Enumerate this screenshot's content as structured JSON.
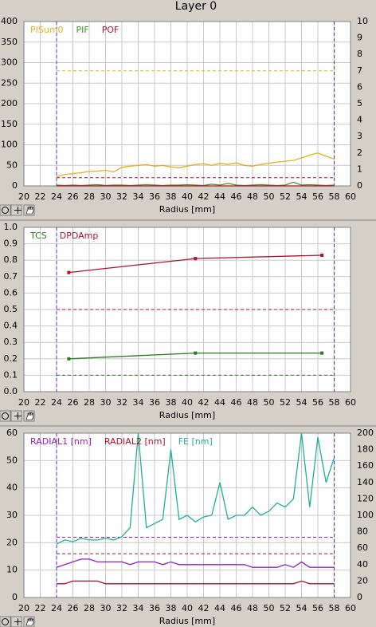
{
  "title": "Layer 0",
  "chart_data": [
    {
      "type": "line",
      "xlabel": "Radius [mm]",
      "xlim": [
        20,
        60
      ],
      "xticks": [
        20,
        22,
        24,
        26,
        28,
        30,
        32,
        34,
        36,
        38,
        40,
        42,
        44,
        46,
        48,
        50,
        52,
        54,
        56,
        58,
        60
      ],
      "ylim": [
        0,
        400
      ],
      "yticks": [
        0,
        50,
        100,
        150,
        200,
        250,
        300,
        350,
        400
      ],
      "y2lim": [
        0,
        10
      ],
      "y2ticks": [
        0,
        1,
        2,
        3,
        4,
        5,
        6,
        7,
        8,
        9,
        10
      ],
      "x": [
        24,
        25,
        26,
        27,
        28,
        29,
        30,
        31,
        32,
        33,
        34,
        35,
        36,
        37,
        38,
        39,
        40,
        41,
        42,
        43,
        44,
        45,
        46,
        47,
        48,
        49,
        50,
        51,
        52,
        53,
        54,
        55,
        56,
        57,
        58
      ],
      "series": [
        {
          "name": "PISum0",
          "color": "#e8b020",
          "values": [
            22,
            28,
            30,
            32,
            35,
            36,
            38,
            34,
            45,
            48,
            50,
            52,
            48,
            50,
            46,
            44,
            48,
            52,
            54,
            50,
            55,
            52,
            56,
            50,
            48,
            52,
            55,
            58,
            60,
            62,
            68,
            75,
            80,
            72,
            65
          ]
        },
        {
          "name": "PIF",
          "color": "#3a9a20",
          "values": [
            2,
            1,
            2,
            1,
            2,
            3,
            1,
            2,
            2,
            1,
            2,
            3,
            2,
            1,
            2,
            2,
            3,
            2,
            1,
            4,
            2,
            6,
            2,
            1,
            2,
            3,
            2,
            1,
            2,
            9,
            2,
            3,
            2,
            1,
            2
          ]
        },
        {
          "name": "POF",
          "color": "#b01030",
          "values": [
            0,
            0,
            0,
            0,
            0,
            0,
            0,
            0,
            0,
            0,
            0,
            0,
            0,
            0,
            0,
            0,
            0,
            0,
            0,
            0,
            0,
            0,
            0,
            0,
            0,
            0,
            0,
            0,
            0,
            0,
            0,
            0,
            0,
            0,
            0
          ]
        }
      ],
      "reference_lines": [
        {
          "value": 280,
          "color": "#e8b020"
        },
        {
          "value": 20,
          "color": "#b01030"
        }
      ],
      "vlines": [
        24,
        58
      ],
      "vline_color": "#4030d0",
      "grid": true
    },
    {
      "type": "line",
      "xlabel": "Radius [mm]",
      "xlim": [
        20,
        60
      ],
      "xticks": [
        20,
        22,
        24,
        26,
        28,
        30,
        32,
        34,
        36,
        38,
        40,
        42,
        44,
        46,
        48,
        50,
        52,
        54,
        56,
        58,
        60
      ],
      "ylim": [
        0,
        1
      ],
      "yticks": [
        {
          "value": 0,
          "label": "0.0"
        },
        0.1,
        0.2,
        0.3,
        0.4,
        0.5,
        0.6,
        0.7,
        0.8,
        0.9,
        {
          "value": 1,
          "label": "1.0"
        }
      ],
      "x": [
        25.5,
        41,
        56.5
      ],
      "markers": true,
      "series": [
        {
          "name": "TCS",
          "color": "#2a7a20",
          "values": [
            0.2,
            0.235,
            0.235
          ]
        },
        {
          "name": "DPDAmp",
          "color": "#b01030",
          "values": [
            0.725,
            0.81,
            0.83
          ]
        }
      ],
      "reference_lines": [
        {
          "value": 0.5,
          "color": "#b01030"
        },
        {
          "value": 0.1,
          "color": "#2a7a20"
        }
      ],
      "vlines": [
        24,
        58
      ],
      "vline_color": "#4030d0",
      "grid": true
    },
    {
      "type": "line",
      "xlabel": "Radius [mm]",
      "xlim": [
        20,
        60
      ],
      "xticks": [
        20,
        22,
        24,
        26,
        28,
        30,
        32,
        34,
        36,
        38,
        40,
        42,
        44,
        46,
        48,
        50,
        52,
        54,
        56,
        58,
        60
      ],
      "ylim": [
        0,
        60
      ],
      "yticks": [
        0,
        10,
        20,
        30,
        40,
        50,
        60
      ],
      "y2lim": [
        0,
        200
      ],
      "y2ticks": [
        0,
        20,
        40,
        60,
        80,
        100,
        120,
        140,
        160,
        180,
        200
      ],
      "x": [
        24,
        25,
        26,
        27,
        28,
        29,
        30,
        31,
        32,
        33,
        34,
        35,
        36,
        37,
        38,
        39,
        40,
        41,
        42,
        43,
        44,
        45,
        46,
        47,
        48,
        49,
        50,
        51,
        52,
        53,
        54,
        55,
        56,
        57,
        58
      ],
      "series": [
        {
          "name": "RADIAL1 [nm]",
          "color": "#9020c0",
          "values": [
            11,
            12,
            13,
            14,
            14,
            13,
            13,
            13,
            13,
            12,
            13,
            13,
            13,
            12,
            13,
            12,
            12,
            12,
            12,
            12,
            12,
            12,
            12,
            12,
            11,
            11,
            11,
            11,
            12,
            11,
            13,
            11,
            11,
            11,
            11
          ]
        },
        {
          "name": "RADIAL2 [nm]",
          "color": "#b01030",
          "values": [
            5,
            5,
            6,
            6,
            6,
            6,
            5,
            5,
            5,
            5,
            5,
            5,
            5,
            5,
            5,
            5,
            5,
            5,
            5,
            5,
            5,
            5,
            5,
            5,
            5,
            5,
            5,
            5,
            5,
            5,
            6,
            5,
            5,
            5,
            5
          ]
        },
        {
          "name": "FE [nm]",
          "color": "#20b090",
          "axis": "y2",
          "values": [
            65,
            70,
            68,
            72,
            70,
            70,
            72,
            70,
            74,
            85,
            200,
            85,
            90,
            95,
            180,
            95,
            100,
            92,
            98,
            100,
            140,
            95,
            100,
            100,
            110,
            100,
            105,
            115,
            110,
            120,
            200,
            110,
            195,
            140,
            170
          ]
        }
      ],
      "reference_lines": [
        {
          "value": 22,
          "color": "#9020c0"
        },
        {
          "value": 16,
          "color": "#b01030"
        }
      ],
      "vlines": [
        24,
        58
      ],
      "vline_color": "#4030d0",
      "grid": true
    }
  ]
}
